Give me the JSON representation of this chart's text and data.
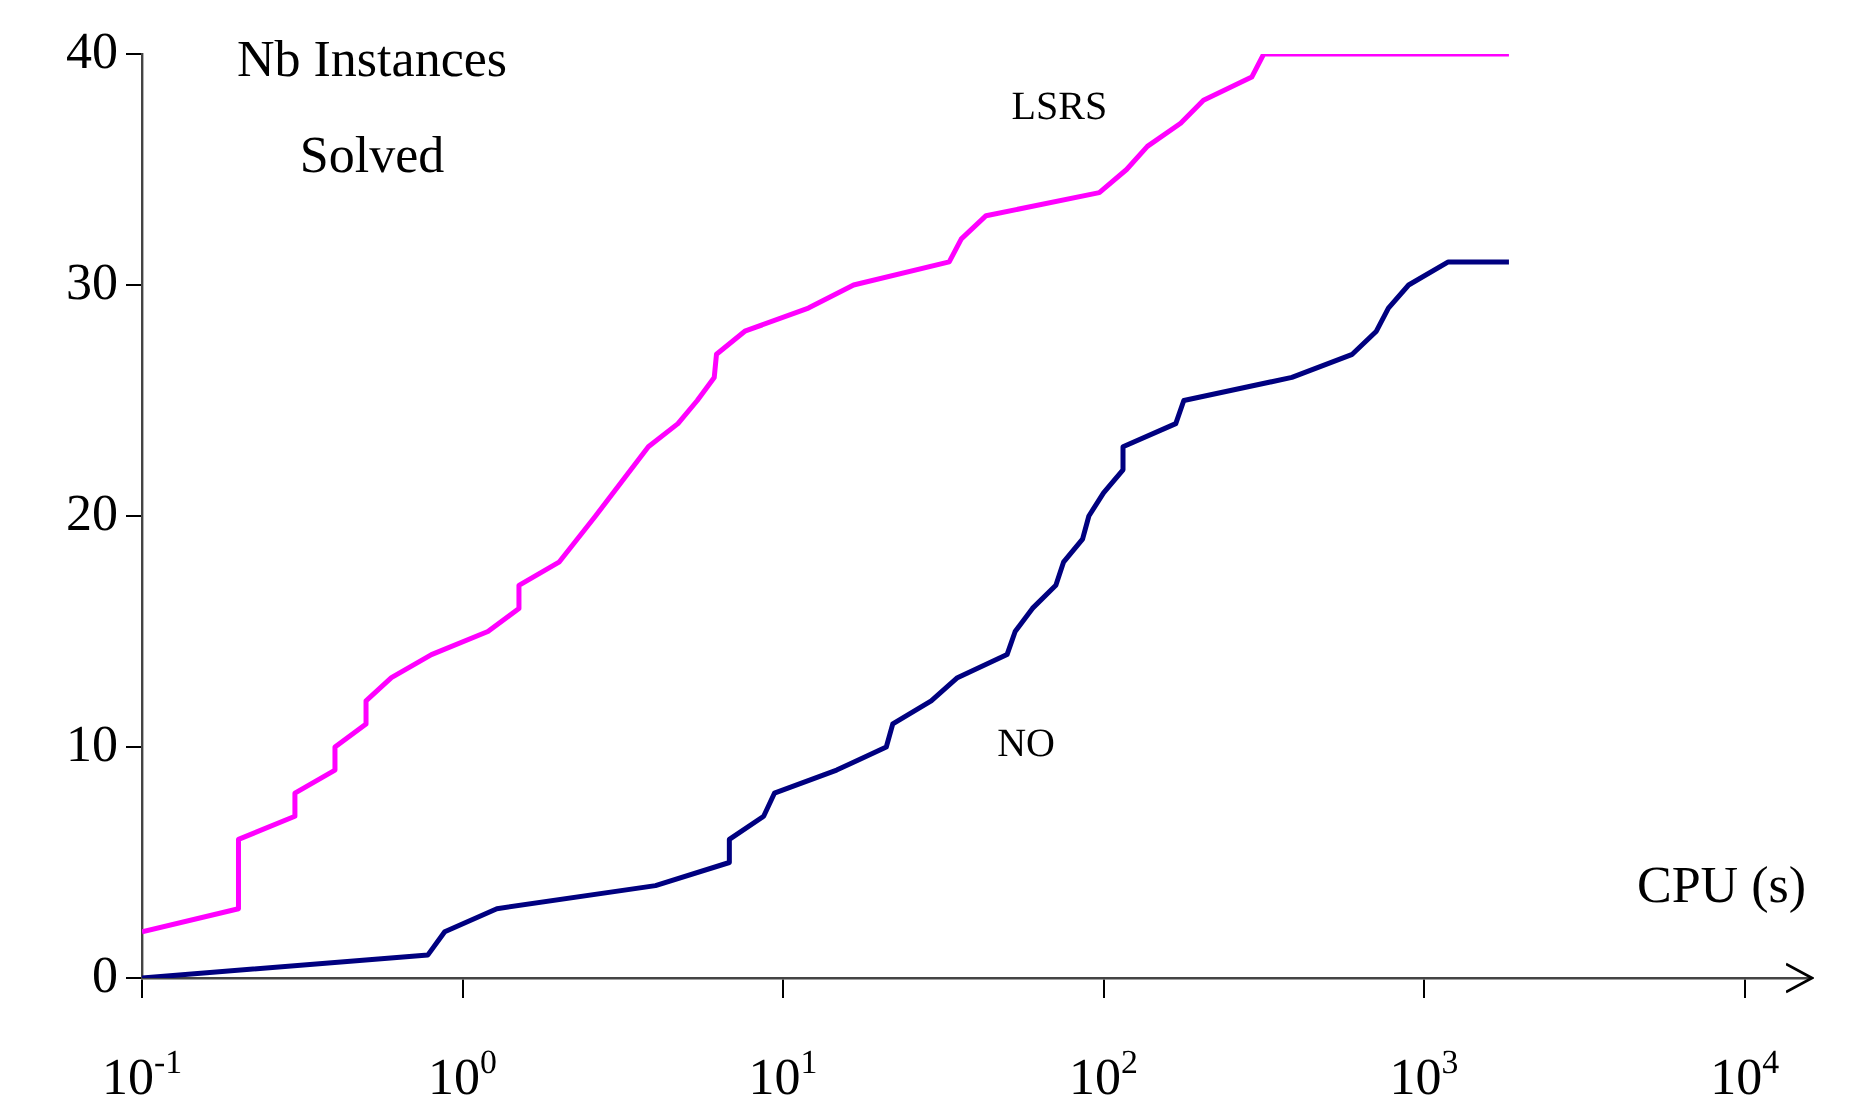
{
  "chart_data": {
    "type": "line",
    "ylabel": "Nb Instances\nSolved",
    "xlabel": "CPU (s)",
    "log": "x",
    "xlim": [
      0.1,
      16000
    ],
    "ylim": [
      0,
      40
    ],
    "xticks": [
      {
        "value": 0.1,
        "label": "10$^{-1}$"
      },
      {
        "value": 1,
        "label": "10$^{0}$"
      },
      {
        "value": 10,
        "label": "10$^{1}$"
      },
      {
        "value": 100,
        "label": "10$^{2}$"
      },
      {
        "value": 1000,
        "label": "10$^{3}$"
      },
      {
        "value": 10000,
        "label": "10$^{4}$"
      }
    ],
    "yticks": [
      0,
      10,
      20,
      30,
      40
    ],
    "legend": false,
    "marker": "none",
    "line_style": "solid",
    "series": [
      {
        "name": "LSRS",
        "color": "#ff00ff",
        "x": [
          0.1,
          0.2,
          0.2,
          0.3,
          0.3,
          0.4,
          0.4,
          0.5,
          0.5,
          0.6,
          0.8,
          1.2,
          1.5,
          1.5,
          2,
          2.6,
          3.8,
          4.7,
          5.4,
          6.1,
          6.2,
          7.6,
          12,
          16.6,
          33,
          36,
          43,
          97,
          118,
          137,
          174,
          205,
          290,
          316,
          1840
        ],
        "values": [
          2,
          3,
          6,
          7,
          8,
          9,
          10,
          11,
          12,
          13,
          14,
          15,
          16,
          17,
          18,
          20,
          23,
          24,
          25,
          26,
          27,
          28,
          29,
          30,
          31,
          32,
          33,
          34,
          35,
          36,
          37,
          38,
          39,
          40,
          40
        ]
      },
      {
        "name": "NO",
        "color": "#000080",
        "x": [
          0.1,
          0.78,
          0.88,
          1.28,
          4,
          6.8,
          6.8,
          8.7,
          9.4,
          14.7,
          21,
          22,
          29,
          35,
          50,
          53,
          60,
          71,
          75,
          86,
          90,
          100,
          115,
          115,
          168,
          178,
          387,
          597,
          710,
          774,
          895,
          1190,
          1840
        ],
        "values": [
          0,
          1,
          2,
          3,
          4,
          5,
          6,
          7,
          8,
          9,
          10,
          11,
          12,
          13,
          14,
          15,
          16,
          17,
          18,
          19,
          20,
          21,
          22,
          23,
          24,
          25,
          26,
          27,
          28,
          29,
          30,
          31,
          31
        ]
      }
    ]
  }
}
